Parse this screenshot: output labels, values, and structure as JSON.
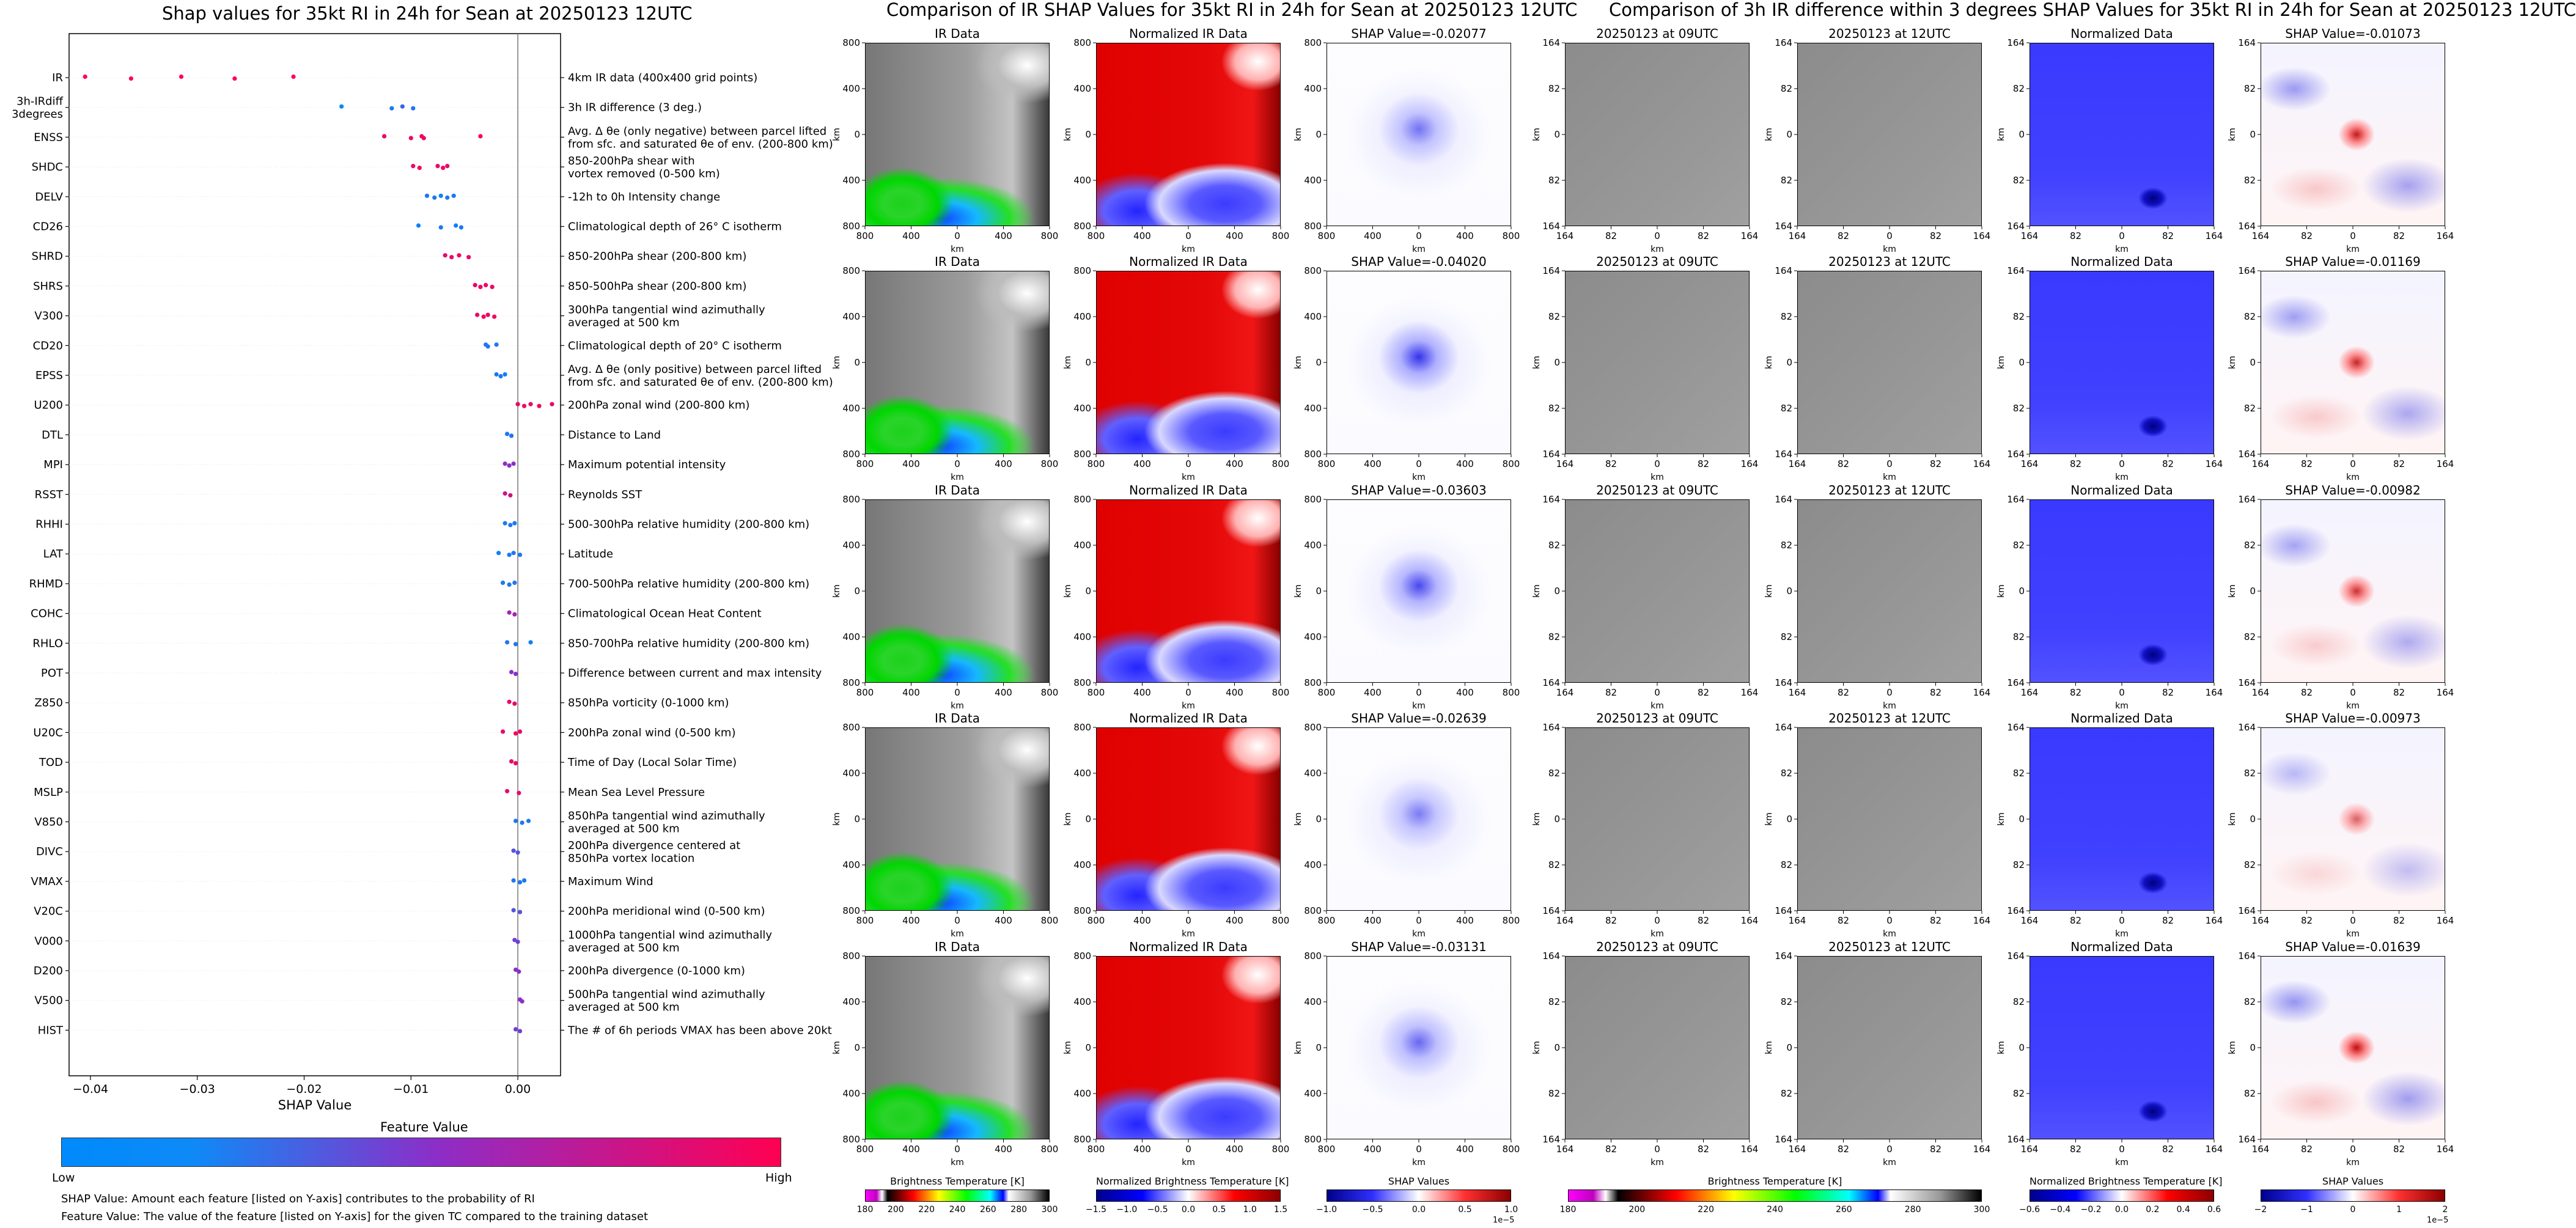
{
  "titles": {
    "left": "Shap values for 35kt RI in 24h for Sean at 20250123 12UTC",
    "middle": "Comparison of IR SHAP Values for 35kt RI in 24h for Sean at 20250123 12UTC",
    "right": "Comparison of 3h IR difference within 3 degrees SHAP Values for 35kt RI in 24h for Sean at 20250123 12UTC"
  },
  "chart_data": [
    {
      "type": "scatter",
      "title": "Shap values for 35kt RI in 24h for Sean at 20250123 12UTC",
      "xlabel": "SHAP Value",
      "xlim": [
        -0.042,
        0.004
      ],
      "xticks": [
        "−0.04",
        "−0.03",
        "−0.02",
        "−0.01",
        "0.00"
      ],
      "xtick_values": [
        -0.04,
        -0.03,
        -0.02,
        -0.01,
        0.0
      ],
      "colorbar": {
        "title": "Feature Value",
        "low": "Low",
        "high": "High",
        "colors": [
          "#008afb",
          "#8c2ec8",
          "#ff0052"
        ]
      },
      "features": [
        {
          "name": "IR",
          "description": "4km IR data (400x400 grid points)",
          "points": [
            [
              -0.0405,
              1
            ],
            [
              -0.0362,
              1
            ],
            [
              -0.0315,
              1
            ],
            [
              -0.0265,
              1
            ],
            [
              -0.021,
              1
            ]
          ]
        },
        {
          "name": "3h-IRdiff\n3degrees",
          "description": "3h IR difference (3 deg.)",
          "points": [
            [
              -0.0165,
              0
            ],
            [
              -0.0118,
              0.1
            ],
            [
              -0.0108,
              0.2
            ],
            [
              -0.0098,
              0.1
            ]
          ]
        },
        {
          "name": "ENSS",
          "description": "Avg. Δ θe (only negative) between parcel lifted\nfrom sfc. and saturated θe of env. (200-800 km)",
          "points": [
            [
              -0.0125,
              0.9
            ],
            [
              -0.01,
              0.9
            ],
            [
              -0.009,
              0.95
            ],
            [
              -0.0088,
              0.9
            ],
            [
              -0.0035,
              0.95
            ]
          ]
        },
        {
          "name": "SHDC",
          "description": "850-200hPa shear with\nvortex removed (0-500 km)",
          "points": [
            [
              -0.0098,
              0.9
            ],
            [
              -0.0092,
              0.95
            ],
            [
              -0.0075,
              0.9
            ],
            [
              -0.007,
              0.95
            ],
            [
              -0.0066,
              0.9
            ]
          ]
        },
        {
          "name": "DELV",
          "description": "-12h to 0h Intensity change",
          "points": [
            [
              -0.0085,
              0.1
            ],
            [
              -0.0078,
              0.1
            ],
            [
              -0.0072,
              0.05
            ],
            [
              -0.0066,
              0.1
            ],
            [
              -0.006,
              0.1
            ]
          ]
        },
        {
          "name": "CD26",
          "description": "Climatological depth of 26° C isotherm",
          "points": [
            [
              -0.0093,
              0.05
            ],
            [
              -0.0072,
              0.1
            ],
            [
              -0.0058,
              0.05
            ],
            [
              -0.0053,
              0.1
            ]
          ]
        },
        {
          "name": "SHRD",
          "description": "850-200hPa shear (200-800 km)",
          "points": [
            [
              -0.0068,
              0.9
            ],
            [
              -0.0062,
              0.9
            ],
            [
              -0.0055,
              0.95
            ],
            [
              -0.0046,
              0.9
            ]
          ]
        },
        {
          "name": "SHRS",
          "description": "850-500hPa shear (200-800 km)",
          "points": [
            [
              -0.004,
              0.9
            ],
            [
              -0.0035,
              0.9
            ],
            [
              -0.003,
              0.95
            ],
            [
              -0.0024,
              0.9
            ]
          ]
        },
        {
          "name": "V300",
          "description": "300hPa tangential wind azimuthally\naveraged at 500 km",
          "points": [
            [
              -0.0038,
              0.9
            ],
            [
              -0.0032,
              0.95
            ],
            [
              -0.0028,
              0.9
            ],
            [
              -0.0022,
              0.95
            ]
          ]
        },
        {
          "name": "CD20",
          "description": "Climatological depth of 20° C isotherm",
          "points": [
            [
              -0.003,
              0.1
            ],
            [
              -0.0028,
              0.1
            ],
            [
              -0.002,
              0.1
            ]
          ]
        },
        {
          "name": "EPSS",
          "description": "Avg. Δ θe (only positive) between parcel lifted\nfrom sfc. and saturated θe of env. (200-800 km)",
          "points": [
            [
              -0.002,
              0.1
            ],
            [
              -0.0016,
              0.1
            ],
            [
              -0.0012,
              0.05
            ]
          ]
        },
        {
          "name": "U200",
          "description": "200hPa zonal wind (200-800 km)",
          "points": [
            [
              0.0,
              0.9
            ],
            [
              0.0006,
              0.95
            ],
            [
              0.0012,
              0.9
            ],
            [
              0.002,
              0.95
            ],
            [
              0.0032,
              0.9
            ]
          ]
        },
        {
          "name": "DTL",
          "description": "Distance to Land",
          "points": [
            [
              -0.001,
              0.1
            ],
            [
              -0.0006,
              0.1
            ]
          ]
        },
        {
          "name": "MPI",
          "description": "Maximum potential intensity",
          "points": [
            [
              -0.0012,
              0.5
            ],
            [
              -0.0008,
              0.5
            ],
            [
              -0.0004,
              0.5
            ]
          ]
        },
        {
          "name": "RSST",
          "description": "Reynolds SST",
          "points": [
            [
              -0.0012,
              0.8
            ],
            [
              -0.0007,
              0.8
            ]
          ]
        },
        {
          "name": "RHHI",
          "description": "500-300hPa relative humidity (200-800 km)",
          "points": [
            [
              -0.0012,
              0.1
            ],
            [
              -0.0007,
              0.1
            ],
            [
              -0.0003,
              0.1
            ]
          ]
        },
        {
          "name": "LAT",
          "description": "Latitude",
          "points": [
            [
              -0.0018,
              0.05
            ],
            [
              -0.0008,
              0.1
            ],
            [
              -0.0004,
              0.1
            ],
            [
              0.0002,
              0.1
            ]
          ]
        },
        {
          "name": "RHMD",
          "description": "700-500hPa relative humidity (200-800 km)",
          "points": [
            [
              -0.0014,
              0.1
            ],
            [
              -0.0008,
              0.1
            ],
            [
              -0.0003,
              0.1
            ]
          ]
        },
        {
          "name": "COHC",
          "description": "Climatological Ocean Heat Content",
          "points": [
            [
              -0.0008,
              0.6
            ],
            [
              -0.0003,
              0.6
            ]
          ]
        },
        {
          "name": "RHLO",
          "description": "850-700hPa relative humidity (200-800 km)",
          "points": [
            [
              -0.001,
              0.1
            ],
            [
              -0.0002,
              0.1
            ],
            [
              0.0012,
              0.05
            ]
          ]
        },
        {
          "name": "POT",
          "description": "Difference between current and max intensity",
          "points": [
            [
              -0.0006,
              0.5
            ],
            [
              -0.0002,
              0.5
            ]
          ]
        },
        {
          "name": "Z850",
          "description": "850hPa vorticity (0-1000 km)",
          "points": [
            [
              -0.0008,
              0.9
            ],
            [
              -0.0003,
              0.9
            ]
          ]
        },
        {
          "name": "U20C",
          "description": "200hPa zonal wind (0-500 km)",
          "points": [
            [
              -0.0014,
              0.9
            ],
            [
              -0.0002,
              0.95
            ],
            [
              0.0002,
              0.9
            ]
          ]
        },
        {
          "name": "TOD",
          "description": "Time of Day (Local Solar Time)",
          "points": [
            [
              -0.0006,
              0.9
            ],
            [
              -0.0002,
              0.9
            ]
          ]
        },
        {
          "name": "MSLP",
          "description": "Mean Sea Level Pressure",
          "points": [
            [
              -0.001,
              0.9
            ],
            [
              0.0001,
              0.9
            ]
          ]
        },
        {
          "name": "V850",
          "description": "850hPa tangential wind azimuthally\naveraged at 500 km",
          "points": [
            [
              -0.0002,
              0.1
            ],
            [
              0.0004,
              0.1
            ],
            [
              0.001,
              0.1
            ]
          ]
        },
        {
          "name": "DIVC",
          "description": "200hPa divergence centered at\n850hPa vortex location",
          "points": [
            [
              -0.0004,
              0.3
            ],
            [
              0.0,
              0.3
            ]
          ]
        },
        {
          "name": "VMAX",
          "description": "Maximum Wind",
          "points": [
            [
              -0.0004,
              0.1
            ],
            [
              0.0002,
              0.1
            ],
            [
              0.0006,
              0.1
            ]
          ]
        },
        {
          "name": "V20C",
          "description": "200hPa meridional wind (0-500 km)",
          "points": [
            [
              -0.0004,
              0.3
            ],
            [
              0.0002,
              0.3
            ]
          ]
        },
        {
          "name": "V000",
          "description": "1000hPa tangential wind azimuthally\naveraged at 500 km",
          "points": [
            [
              -0.0003,
              0.4
            ],
            [
              0.0,
              0.4
            ]
          ]
        },
        {
          "name": "D200",
          "description": "200hPa divergence (0-1000 km)",
          "points": [
            [
              -0.0002,
              0.5
            ],
            [
              0.0001,
              0.5
            ]
          ]
        },
        {
          "name": "V500",
          "description": "500hPa tangential wind azimuthally\naveraged at 500 km",
          "points": [
            [
              0.0002,
              0.5
            ],
            [
              0.0004,
              0.5
            ]
          ]
        },
        {
          "name": "HIST",
          "description": "The # of 6h periods VMAX has been above 20kt",
          "points": [
            [
              -0.0002,
              0.4
            ],
            [
              0.0002,
              0.4
            ]
          ]
        }
      ]
    },
    {
      "type": "heatmap",
      "title": "Comparison of IR SHAP Values for 35kt RI in 24h for Sean at 20250123 12UTC",
      "columns": [
        "IR Data",
        "Normalized IR Data",
        "SHAP"
      ],
      "xlabel": "km",
      "ylabel": "km",
      "xticks": [
        "800",
        "400",
        "0",
        "400",
        "800"
      ],
      "yticks": [
        "800",
        "400",
        "0",
        "400",
        "800"
      ],
      "shap_values": [
        "SHAP Value=-0.02077",
        "SHAP Value=-0.04020",
        "SHAP Value=-0.03603",
        "SHAP Value=-0.02639",
        "SHAP Value=-0.03131"
      ],
      "colorbars": [
        {
          "label": "Brightness Temperature [K]",
          "ticks": [
            "180",
            "200",
            "220",
            "240",
            "260",
            "280",
            "300"
          ]
        },
        {
          "label": "Normalized Brightness Temperature [K]",
          "ticks": [
            "−1.5",
            "−1.0",
            "−0.5",
            "0.0",
            "0.5",
            "1.0",
            "1.5"
          ]
        },
        {
          "label": "SHAP Values",
          "ticks": [
            "−1.0",
            "−0.5",
            "0.0",
            "0.5",
            "1.0"
          ],
          "exponent": "1e−5"
        }
      ]
    },
    {
      "type": "heatmap",
      "title": "Comparison of 3h IR difference within 3 degrees SHAP Values for 35kt RI in 24h for Sean at 20250123 12UTC",
      "columns": [
        "20250123 at 09UTC",
        "20250123 at 12UTC",
        "Normalized Data",
        "SHAP"
      ],
      "xlabel": "km",
      "ylabel": "km",
      "xticks": [
        "164",
        "82",
        "0",
        "82",
        "164"
      ],
      "yticks": [
        "164",
        "82",
        "0",
        "82",
        "164"
      ],
      "shap_values": [
        "SHAP Value=-0.01073",
        "SHAP Value=-0.01169",
        "SHAP Value=-0.00982",
        "SHAP Value=-0.00973",
        "SHAP Value=-0.01639"
      ],
      "colorbars": [
        {
          "label": "Brightness Temperature [K]",
          "ticks": [
            "180",
            "200",
            "220",
            "240",
            "260",
            "280",
            "300"
          ]
        },
        {
          "label": "Normalized Brightness Temperature [K]",
          "ticks": [
            "−0.6",
            "−0.4",
            "−0.2",
            "0.0",
            "0.2",
            "0.4",
            "0.6"
          ]
        },
        {
          "label": "SHAP Values",
          "ticks": [
            "−2",
            "−1",
            "0",
            "1",
            "2"
          ],
          "exponent": "1e−5"
        }
      ]
    }
  ],
  "notes": [
    "SHAP Value: Amount each feature [listed on Y-axis] contributes to the probability of RI",
    "Feature Value: The value of the feature [listed on Y-axis] for the given TC compared to the training dataset"
  ],
  "colors": {
    "low": "#008afb",
    "mid": "#8c2ec8",
    "high": "#ff0052",
    "axis": "#000000",
    "grid": "#eeeeee"
  }
}
